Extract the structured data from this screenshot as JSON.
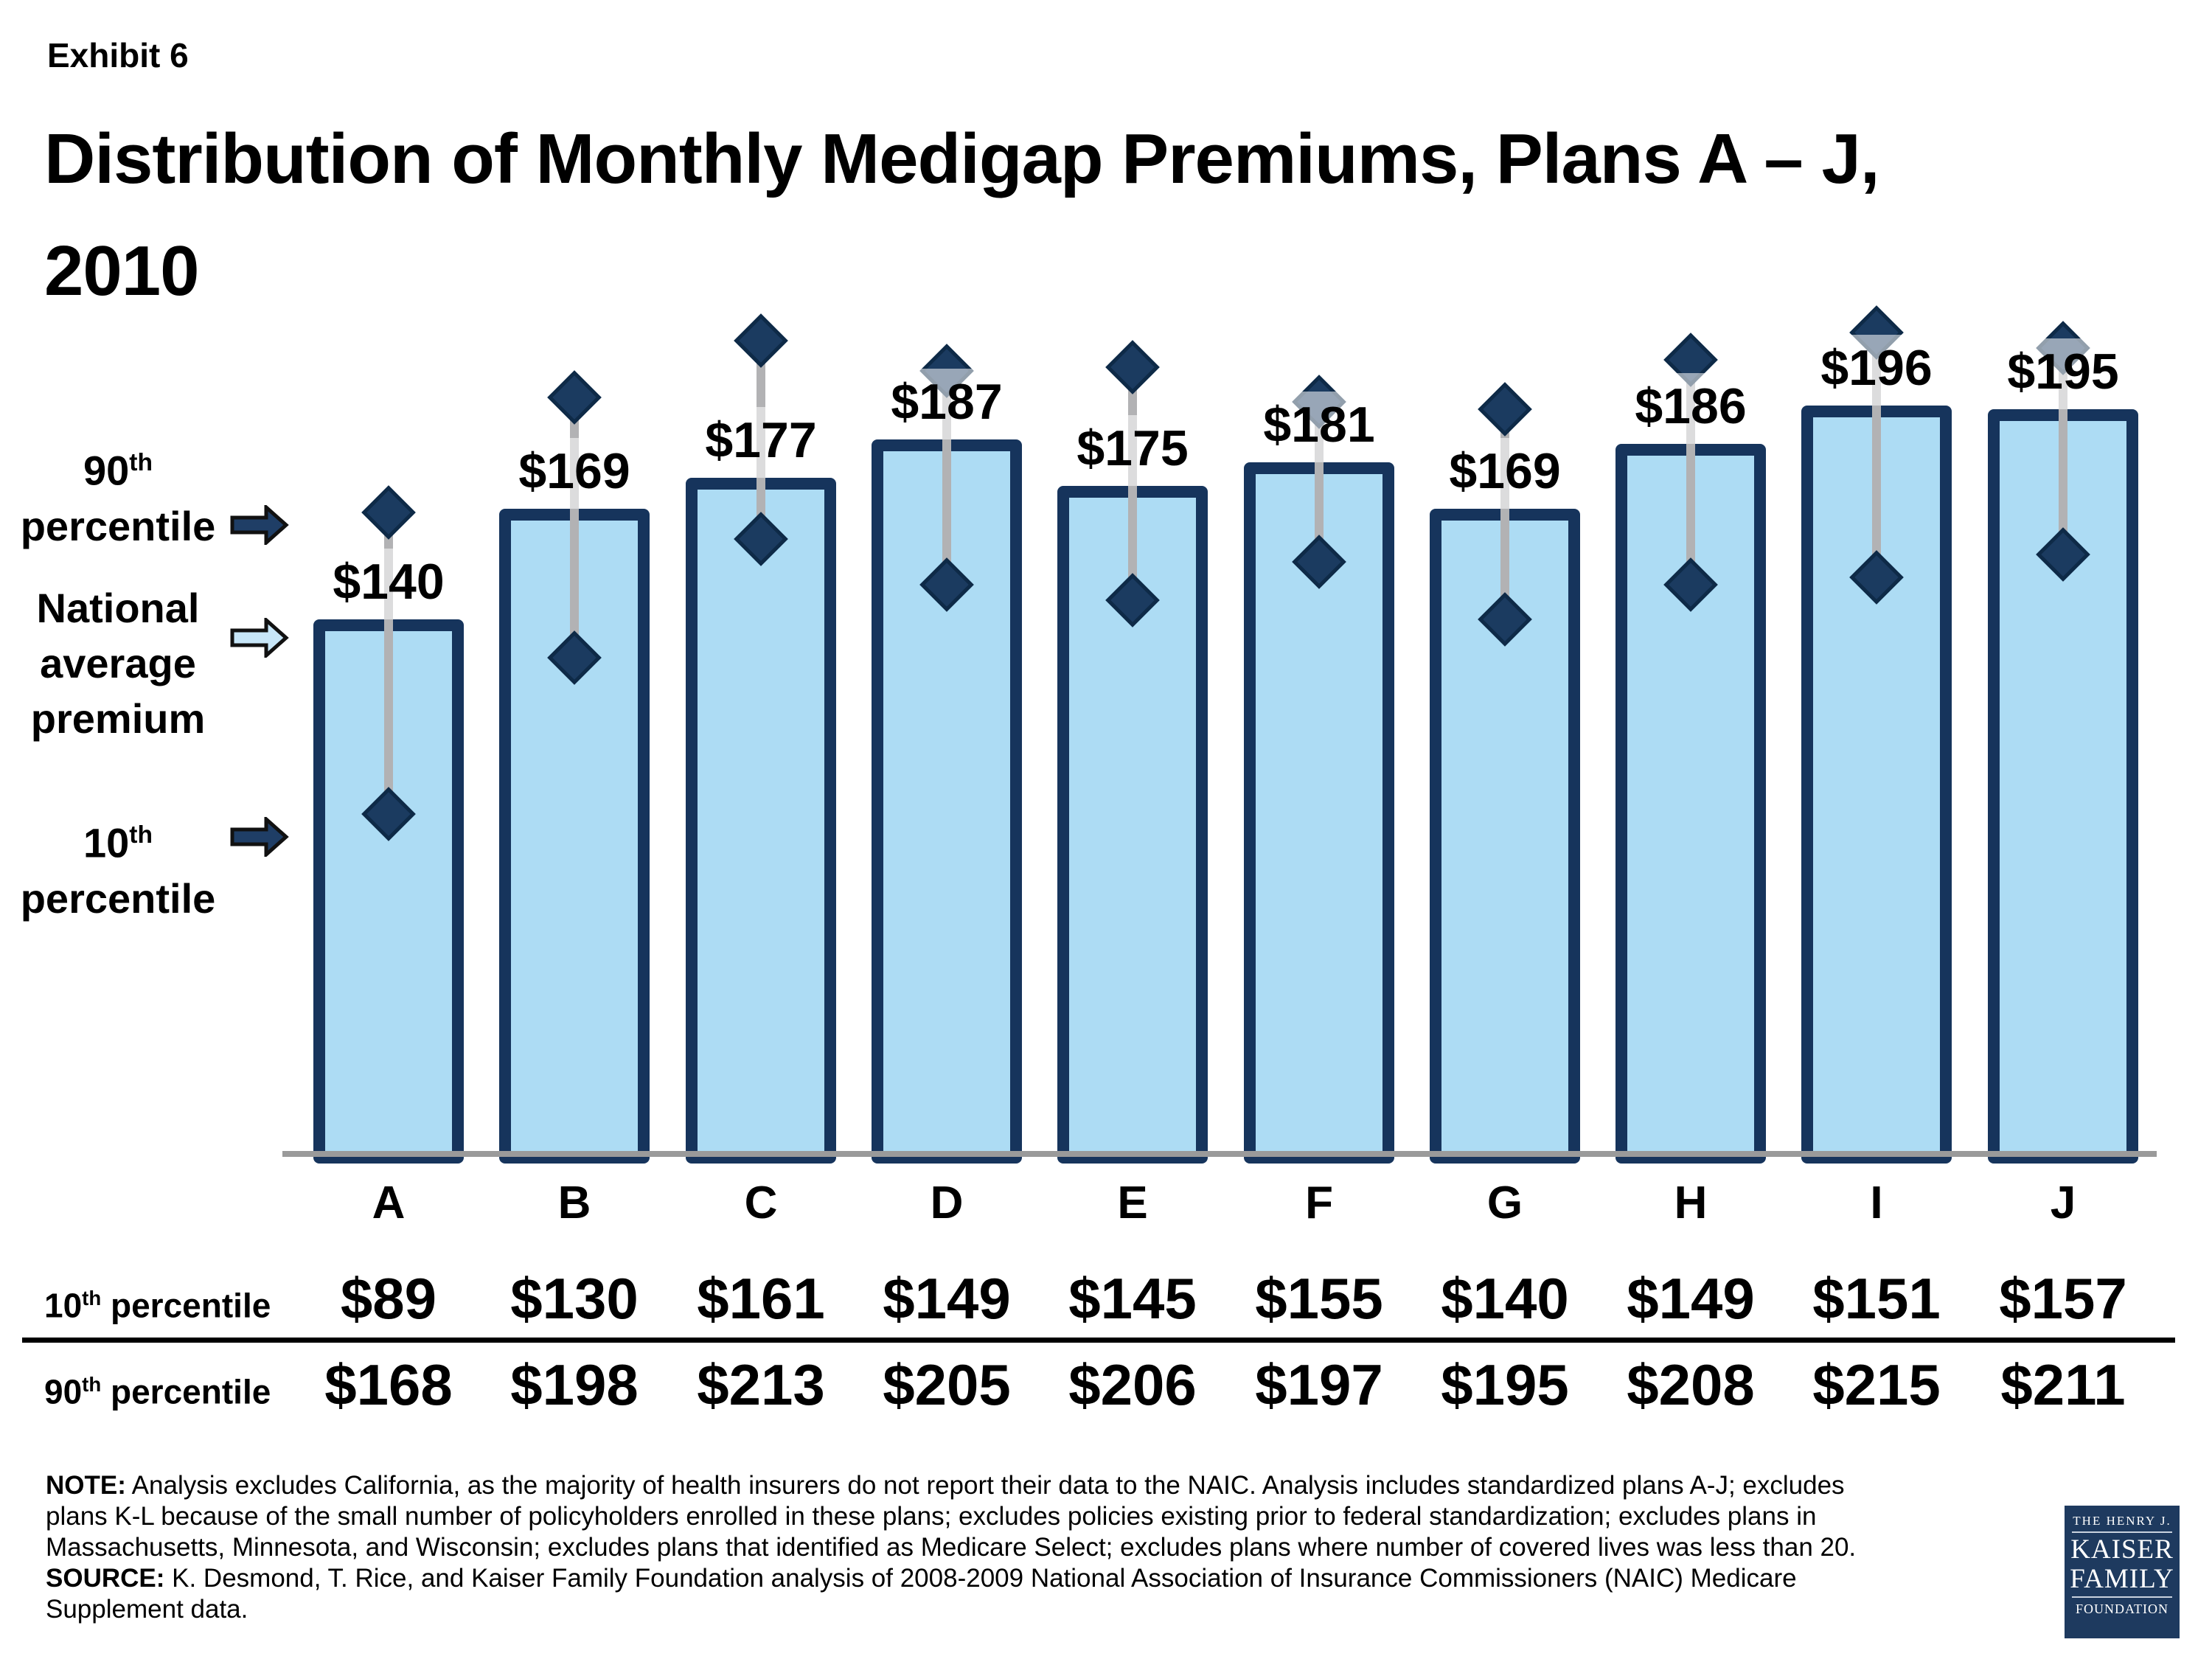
{
  "header": {
    "exhibit": "Exhibit 6",
    "title_line1": "Distribution of Monthly Medigap Premiums, Plans A – J,",
    "title_line2": "2010"
  },
  "legend": {
    "p90": {
      "num": "90",
      "sup": "th",
      "word": "percentile"
    },
    "avg": {
      "l1": "National",
      "l2": "average",
      "l3": "premium"
    },
    "p10": {
      "num": "10",
      "sup": "th",
      "word": "percentile"
    }
  },
  "chart_data": {
    "type": "bar",
    "title": "Distribution of Monthly Medigap Premiums, Plans A – J, 2010",
    "categories": [
      "A",
      "B",
      "C",
      "D",
      "E",
      "F",
      "G",
      "H",
      "I",
      "J"
    ],
    "series": [
      {
        "name": "National average premium",
        "role": "bar",
        "values": [
          140,
          169,
          177,
          187,
          175,
          181,
          169,
          186,
          196,
          195
        ]
      },
      {
        "name": "10th percentile",
        "role": "marker-low",
        "values": [
          89,
          130,
          161,
          149,
          145,
          155,
          140,
          149,
          151,
          157
        ]
      },
      {
        "name": "90th percentile",
        "role": "marker-high",
        "values": [
          168,
          198,
          213,
          205,
          206,
          197,
          195,
          208,
          215,
          211
        ]
      }
    ],
    "value_prefix": "$",
    "ylim": [
      0,
      230
    ],
    "grid": false,
    "legend_position": "left"
  },
  "table": {
    "row10_label": {
      "num": "10",
      "sup": "th",
      "rest": " percentile"
    },
    "row90_label": {
      "num": "90",
      "sup": "th",
      "rest": " percentile"
    }
  },
  "note": {
    "note_label": "NOTE:",
    "line1": " Analysis excludes California, as the majority of health insurers do not report their data to the NAIC. Analysis includes standardized plans A-J; excludes",
    "line2": "plans K-L because of the small number of policyholders enrolled in these plans; excludes policies existing prior to federal standardization; excludes plans in",
    "line3": "Massachusetts, Minnesota, and Wisconsin; excludes plans that identified as Medicare Select;  excludes plans where number of covered lives was less than 20.",
    "source_label": "SOURCE:",
    "line4": "  K. Desmond, T. Rice, and Kaiser Family Foundation analysis of 2008-2009 National Association of Insurance Commissioners (NAIC) Medicare",
    "line5": "Supplement data."
  },
  "logo": {
    "top": "THE HENRY J.",
    "name1": "KAISER",
    "name2": "FAMILY",
    "bottom": "FOUNDATION"
  },
  "colors": {
    "bar_fill": "#addcf4",
    "bar_border": "#16345c",
    "diamond_fill": "#1b3b60",
    "diamond_outline": "#0e2a47",
    "range_line": "#b2b2b4",
    "axis_line": "#9a9a9a",
    "arrow_dark": "#1f3e66",
    "arrow_light": "#c7e6f8",
    "arrow_outline": "#111111",
    "label_wash": "rgba(255,255,255,0.55)",
    "logo_bg": "#1e3a5f"
  }
}
